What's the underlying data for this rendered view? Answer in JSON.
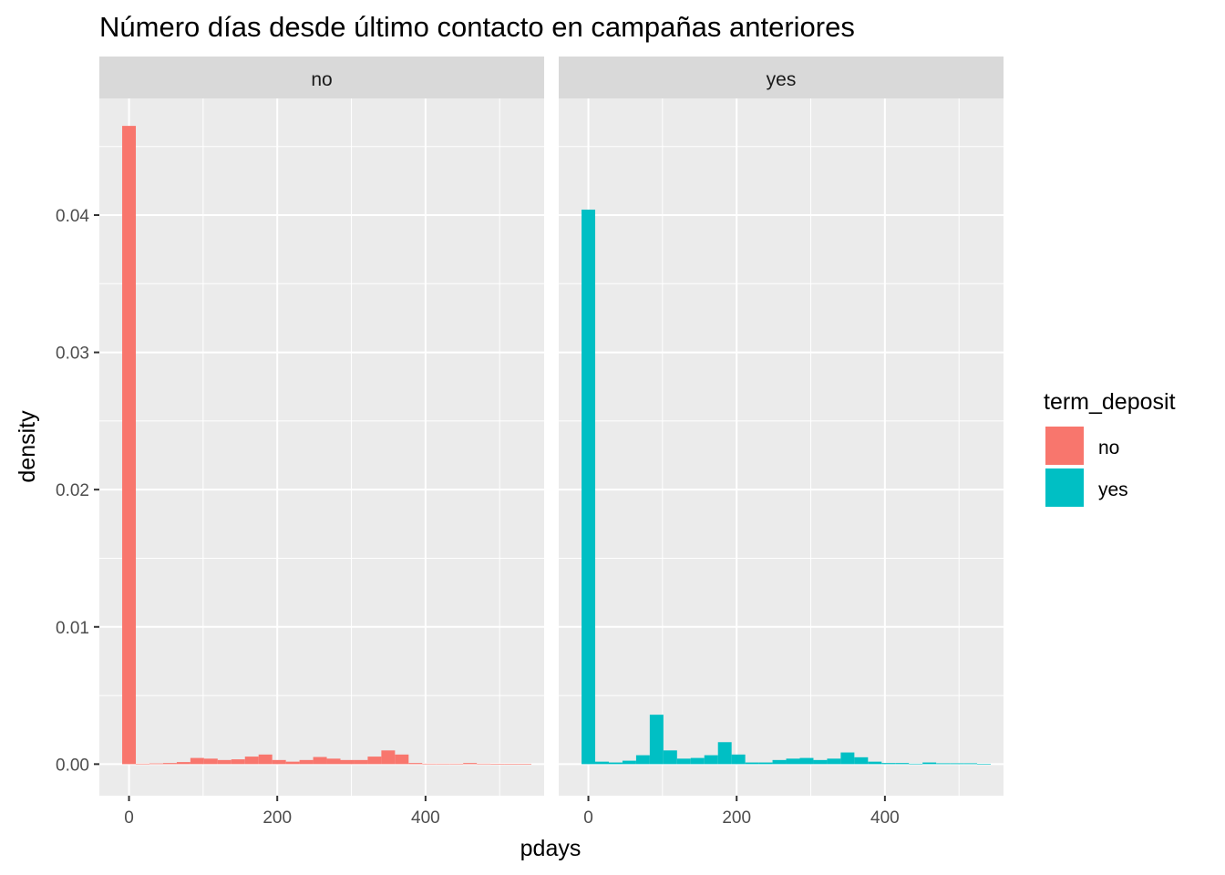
{
  "chart_data": {
    "type": "bar",
    "subtype": "faceted-histogram",
    "title": "Número días desde último contacto en campañas anteriores",
    "xlabel": "pdays",
    "ylabel": "density",
    "xlim": [
      -40,
      560
    ],
    "ylim": [
      -0.0023,
      0.0485
    ],
    "x_ticks": [
      0,
      200,
      400
    ],
    "x_tick_labels": [
      "0",
      "200",
      "400"
    ],
    "y_ticks": [
      0.0,
      0.01,
      0.02,
      0.03,
      0.04
    ],
    "y_tick_labels": [
      "0.00",
      "0.01",
      "0.02",
      "0.03",
      "0.04"
    ],
    "grid": true,
    "bin_width": 18.4,
    "legend": {
      "title": "term_deposit",
      "position": "right",
      "entries": [
        {
          "label": "no",
          "color": "#F8766D"
        },
        {
          "label": "yes",
          "color": "#00BFC4"
        }
      ]
    },
    "facets": [
      {
        "strip": "no",
        "color": "#F8766D",
        "bin_centers": [
          0,
          18.4,
          36.8,
          55.2,
          73.6,
          92,
          110.4,
          128.8,
          147.2,
          165.6,
          184,
          202.4,
          220.8,
          239.2,
          257.6,
          276,
          294.4,
          312.8,
          331.2,
          349.6,
          368,
          386.4,
          404.8,
          423.2,
          441.6,
          460,
          478.4,
          496.8,
          515.2,
          533.6
        ],
        "values": [
          0.0465,
          3e-05,
          5e-05,
          8e-05,
          0.00015,
          0.00045,
          0.0004,
          0.0003,
          0.00035,
          0.00055,
          0.0007,
          0.0003,
          0.00018,
          0.0003,
          0.00052,
          0.0004,
          0.0003,
          0.0003,
          0.00055,
          0.001,
          0.0007,
          8e-05,
          3e-05,
          3e-05,
          3e-05,
          8e-05,
          3e-05,
          2e-05,
          2e-05,
          1e-05
        ]
      },
      {
        "strip": "yes",
        "color": "#00BFC4",
        "bin_centers": [
          0,
          18.4,
          36.8,
          55.2,
          73.6,
          92,
          110.4,
          128.8,
          147.2,
          165.6,
          184,
          202.4,
          220.8,
          239.2,
          257.6,
          276,
          294.4,
          312.8,
          331.2,
          349.6,
          368,
          386.4,
          404.8,
          423.2,
          441.6,
          460,
          478.4,
          496.8,
          515.2,
          533.6
        ],
        "values": [
          0.0404,
          0.00018,
          0.00012,
          0.00025,
          0.00065,
          0.0036,
          0.001,
          0.0004,
          0.00045,
          0.00065,
          0.0016,
          0.0007,
          0.00012,
          0.00012,
          0.0003,
          0.0004,
          0.00045,
          0.0003,
          0.0004,
          0.00085,
          0.0005,
          0.00018,
          8e-05,
          8e-05,
          3e-05,
          0.00012,
          6e-05,
          6e-05,
          6e-05,
          1e-05
        ]
      }
    ]
  }
}
